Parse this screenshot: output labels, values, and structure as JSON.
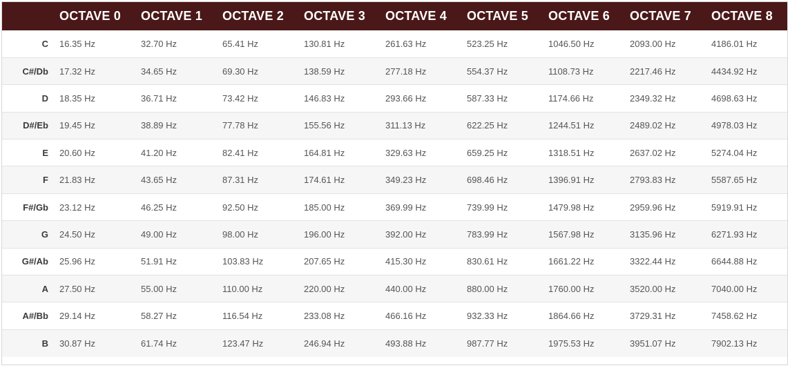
{
  "table": {
    "header_color": "#4a1818",
    "headers": [
      "",
      "OCTAVE 0",
      "OCTAVE 1",
      "OCTAVE 2",
      "OCTAVE 3",
      "OCTAVE 4",
      "OCTAVE 5",
      "OCTAVE 6",
      "OCTAVE 7",
      "OCTAVE 8"
    ],
    "rows": [
      {
        "note": "C",
        "values": [
          "16.35 Hz",
          "32.70 Hz",
          "65.41 Hz",
          "130.81 Hz",
          "261.63 Hz",
          "523.25 Hz",
          "1046.50 Hz",
          "2093.00 Hz",
          "4186.01 Hz"
        ]
      },
      {
        "note": "C#/Db",
        "values": [
          "17.32 Hz",
          "34.65 Hz",
          "69.30 Hz",
          "138.59 Hz",
          "277.18 Hz",
          "554.37 Hz",
          "1108.73 Hz",
          "2217.46 Hz",
          "4434.92 Hz"
        ]
      },
      {
        "note": "D",
        "values": [
          "18.35 Hz",
          "36.71 Hz",
          "73.42 Hz",
          "146.83 Hz",
          "293.66 Hz",
          "587.33 Hz",
          "1174.66 Hz",
          "2349.32 Hz",
          "4698.63 Hz"
        ]
      },
      {
        "note": "D#/Eb",
        "values": [
          "19.45 Hz",
          "38.89 Hz",
          "77.78 Hz",
          "155.56 Hz",
          "311.13 Hz",
          "622.25 Hz",
          "1244.51 Hz",
          "2489.02 Hz",
          "4978.03 Hz"
        ]
      },
      {
        "note": "E",
        "values": [
          "20.60 Hz",
          "41.20 Hz",
          "82.41 Hz",
          "164.81 Hz",
          "329.63 Hz",
          "659.25 Hz",
          "1318.51 Hz",
          "2637.02 Hz",
          "5274.04 Hz"
        ]
      },
      {
        "note": "F",
        "values": [
          "21.83 Hz",
          "43.65 Hz",
          "87.31 Hz",
          "174.61 Hz",
          "349.23 Hz",
          "698.46 Hz",
          "1396.91 Hz",
          "2793.83 Hz",
          "5587.65 Hz"
        ]
      },
      {
        "note": "F#/Gb",
        "values": [
          "23.12 Hz",
          "46.25 Hz",
          "92.50 Hz",
          "185.00 Hz",
          "369.99 Hz",
          "739.99 Hz",
          "1479.98 Hz",
          "2959.96 Hz",
          "5919.91 Hz"
        ]
      },
      {
        "note": "G",
        "values": [
          "24.50 Hz",
          "49.00 Hz",
          "98.00 Hz",
          "196.00 Hz",
          "392.00 Hz",
          "783.99 Hz",
          "1567.98 Hz",
          "3135.96 Hz",
          "6271.93 Hz"
        ]
      },
      {
        "note": "G#/Ab",
        "values": [
          "25.96 Hz",
          "51.91 Hz",
          "103.83 Hz",
          "207.65 Hz",
          "415.30 Hz",
          "830.61 Hz",
          "1661.22 Hz",
          "3322.44 Hz",
          "6644.88 Hz"
        ]
      },
      {
        "note": "A",
        "values": [
          "27.50 Hz",
          "55.00 Hz",
          "110.00 Hz",
          "220.00 Hz",
          "440.00 Hz",
          "880.00 Hz",
          "1760.00 Hz",
          "3520.00 Hz",
          "7040.00 Hz"
        ]
      },
      {
        "note": "A#/Bb",
        "values": [
          "29.14 Hz",
          "58.27 Hz",
          "116.54 Hz",
          "233.08 Hz",
          "466.16 Hz",
          "932.33 Hz",
          "1864.66 Hz",
          "3729.31 Hz",
          "7458.62 Hz"
        ]
      },
      {
        "note": "B",
        "values": [
          "30.87 Hz",
          "61.74 Hz",
          "123.47 Hz",
          "246.94 Hz",
          "493.88 Hz",
          "987.77 Hz",
          "1975.53 Hz",
          "3951.07 Hz",
          "7902.13 Hz"
        ]
      }
    ]
  }
}
